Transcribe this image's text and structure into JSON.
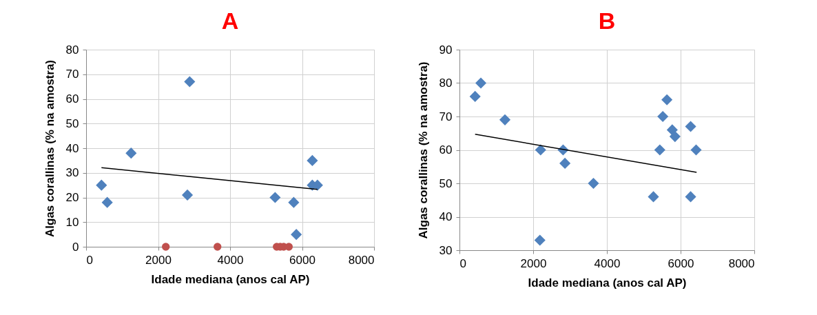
{
  "chart_data": [
    {
      "type": "scatter",
      "title": "A",
      "xlabel": "Idade mediana (anos cal AP)",
      "ylabel": "Algas corallinas (% na amostra)",
      "xlim": [
        0,
        8000
      ],
      "xticks": [
        0,
        2000,
        4000,
        6000,
        8000
      ],
      "ylim": [
        0,
        80
      ],
      "yticks": [
        0,
        10,
        20,
        30,
        40,
        50,
        60,
        70,
        80
      ],
      "grid": true,
      "series": [
        {
          "marker": "diamond",
          "color": "#4f81bd",
          "x": [
            427,
            587,
            1250,
            2877,
            2814,
            5251,
            5768,
            5840,
            6285,
            6285,
            6427
          ],
          "values": [
            25,
            18,
            38,
            67,
            21,
            20,
            18,
            5,
            35,
            25,
            25
          ]
        },
        {
          "marker": "circle",
          "color": "#c0504d",
          "x": [
            2214,
            3650,
            5296,
            5392,
            5488,
            5633
          ],
          "values": [
            0,
            0,
            0,
            0,
            0,
            0
          ]
        },
        {
          "type": "line",
          "color": "#000000",
          "x": [
            427,
            6427
          ],
          "values": [
            32.1,
            23.3
          ]
        }
      ]
    },
    {
      "type": "scatter",
      "title": "B",
      "xlabel": "Idade mediana (anos cal AP)",
      "ylabel": "Algas corallinas (% na amostra)",
      "xlim": [
        0,
        8000
      ],
      "xticks": [
        0,
        2000,
        4000,
        6000,
        8000
      ],
      "ylim": [
        30,
        90
      ],
      "yticks": [
        30,
        40,
        50,
        60,
        70,
        80,
        90
      ],
      "grid": true,
      "series": [
        {
          "marker": "diamond",
          "color": "#4f81bd",
          "x": [
            424,
            580,
            1234,
            2201,
            2182,
            2812,
            2862,
            3635,
            5262,
            5436,
            5517,
            5629,
            5773,
            5848,
            6272,
            6272,
            6421
          ],
          "values": [
            76,
            80,
            69,
            60,
            33,
            60,
            56,
            50,
            46,
            60,
            70,
            75,
            66,
            64,
            67,
            46,
            60
          ]
        },
        {
          "type": "line",
          "color": "#000000",
          "x": [
            424,
            6434
          ],
          "values": [
            64.7,
            53.3
          ]
        }
      ]
    }
  ]
}
